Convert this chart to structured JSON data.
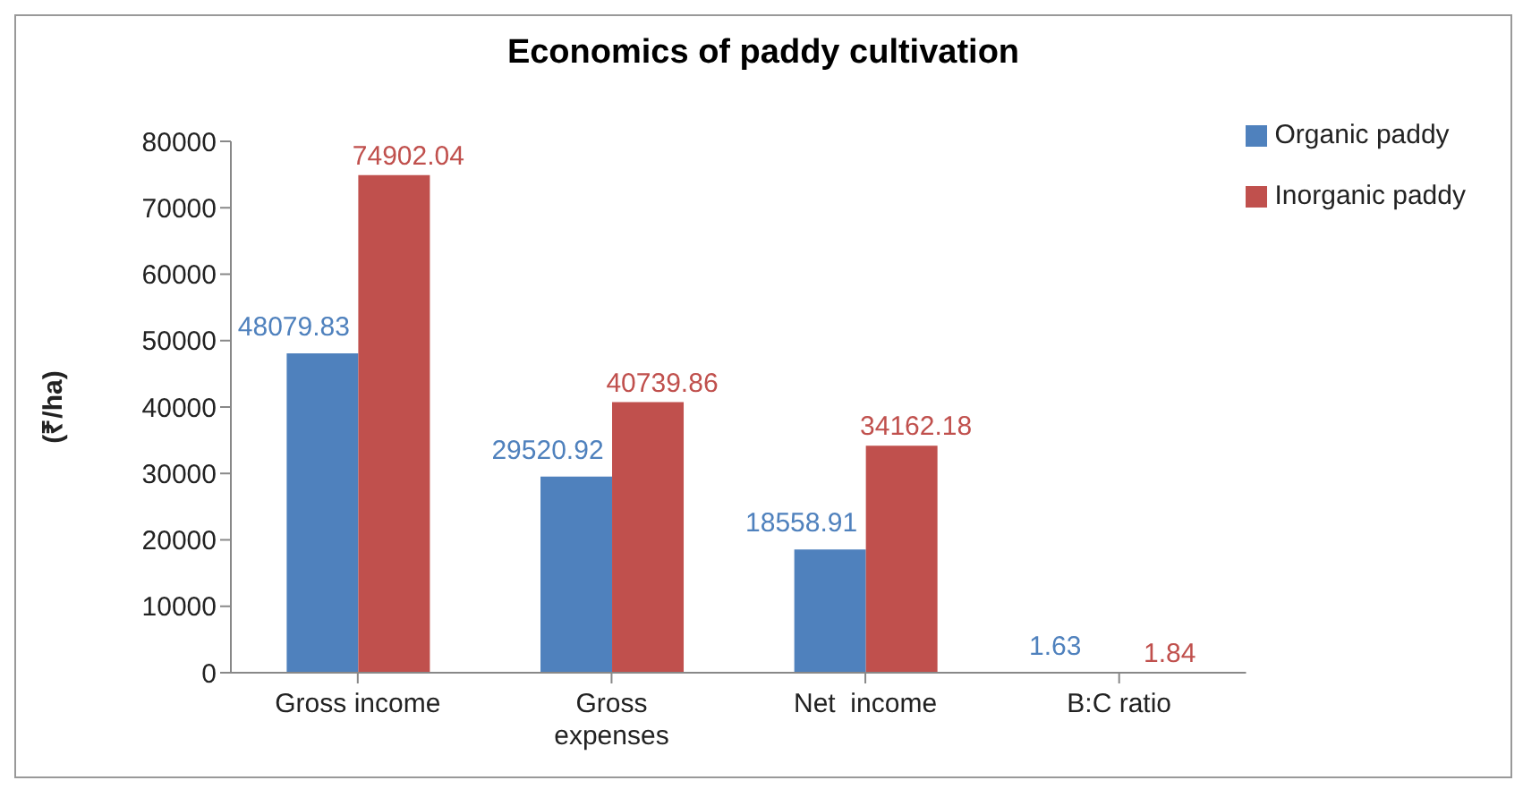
{
  "chart_data": {
    "type": "bar",
    "title": "Economics of paddy cultivation",
    "ylabel": "(₹/ha)",
    "categories": [
      "Gross income",
      "Gross expenses",
      "Net  income",
      "B:C ratio"
    ],
    "series": [
      {
        "name": "Organic paddy",
        "color": "#4f81bd",
        "values": [
          48079.83,
          29520.92,
          18558.91,
          1.63
        ]
      },
      {
        "name": "Inorganic paddy",
        "color": "#c0504d",
        "values": [
          74902.04,
          40739.86,
          34162.18,
          1.84
        ]
      }
    ],
    "ylim": [
      0,
      80000
    ],
    "yticks": [
      0,
      10000,
      20000,
      30000,
      40000,
      50000,
      60000,
      70000,
      80000
    ],
    "grid": false,
    "legend": "top right",
    "data_labels": true
  }
}
